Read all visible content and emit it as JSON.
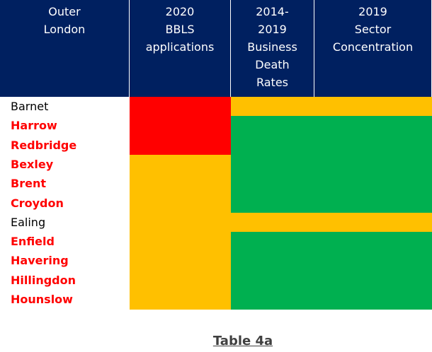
{
  "table": {
    "header": [
      "Outer\nLondon",
      "2020\nBBLS\napplications",
      "2014-\n2019\nBusiness\nDeath\nRates",
      "2019\nSector\nConcentration"
    ],
    "header_color": "#002060",
    "rows": [
      {
        "name": "Barnet",
        "name_color": "#000000",
        "colors": [
          "#ff0000",
          "#ffc000",
          "#ffc000"
        ]
      },
      {
        "name": "Harrow",
        "name_color": "#ff0000",
        "colors": [
          "#ff0000",
          "#00b050",
          "#00b050"
        ]
      },
      {
        "name": "Redbridge",
        "name_color": "#ff0000",
        "colors": [
          "#ff0000",
          "#00b050",
          "#00b050"
        ]
      },
      {
        "name": "Bexley",
        "name_color": "#ff0000",
        "colors": [
          "#ffc000",
          "#00b050",
          "#00b050"
        ]
      },
      {
        "name": "Brent",
        "name_color": "#ff0000",
        "colors": [
          "#ffc000",
          "#00b050",
          "#00b050"
        ]
      },
      {
        "name": "Croydon",
        "name_color": "#ff0000",
        "colors": [
          "#ffc000",
          "#00b050",
          "#00b050"
        ]
      },
      {
        "name": "Ealing",
        "name_color": "#000000",
        "colors": [
          "#ffc000",
          "#ffc000",
          "#ffc000"
        ]
      },
      {
        "name": "Enfield",
        "name_color": "#ff0000",
        "colors": [
          "#ffc000",
          "#00b050",
          "#00b050"
        ]
      },
      {
        "name": "Havering",
        "name_color": "#ff0000",
        "colors": [
          "#ffc000",
          "#00b050",
          "#00b050"
        ]
      },
      {
        "name": "Hillingdon",
        "name_color": "#ff0000",
        "colors": [
          "#ffc000",
          "#00b050",
          "#00b050"
        ]
      },
      {
        "name": "Hounslow",
        "name_color": "#ff0000",
        "colors": [
          "#ffc000",
          "#00b050",
          "#00b050"
        ]
      }
    ],
    "caption": "Table 4a"
  }
}
